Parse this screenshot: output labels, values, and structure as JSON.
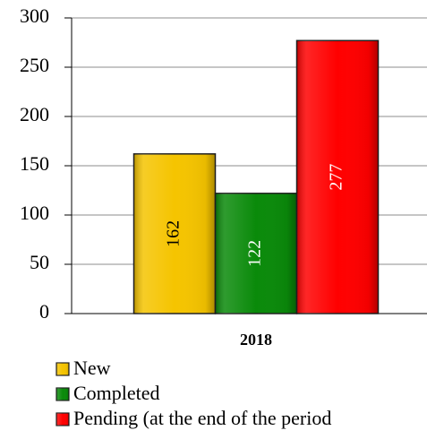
{
  "chart_data": {
    "type": "bar",
    "categories": [
      "2018"
    ],
    "series": [
      {
        "name": "New",
        "color": "#f5c400",
        "values": [
          162
        ]
      },
      {
        "name": "Completed",
        "color": "#0a8a0a",
        "values": [
          122
        ]
      },
      {
        "name": "Pending (at the end of the period",
        "color": "#ff0000",
        "values": [
          277
        ]
      }
    ],
    "ylim": [
      0,
      300
    ],
    "yticks": [
      0,
      50,
      100,
      150,
      200,
      250,
      300
    ],
    "grid": true,
    "legend": "bottom"
  }
}
